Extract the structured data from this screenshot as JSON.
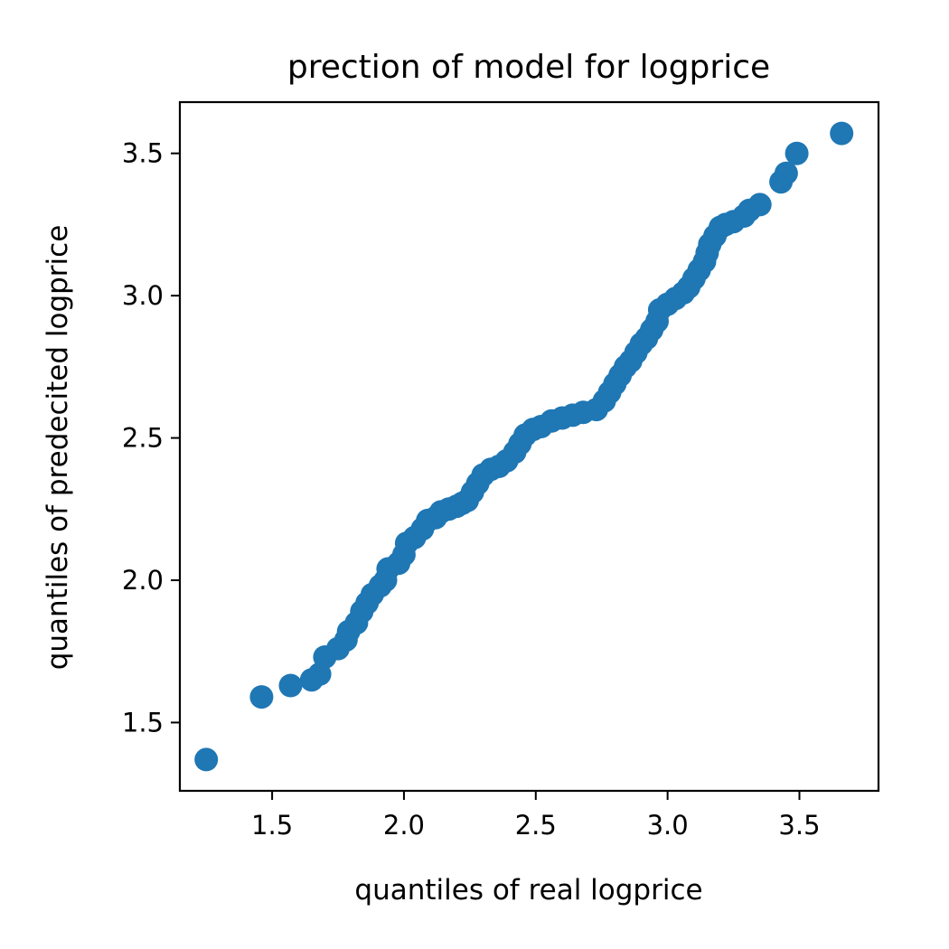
{
  "chart_data": {
    "type": "scatter",
    "title": "prection of model for logprice",
    "xlabel": "quantiles of real logprice",
    "ylabel": "quantiles of predecited logprice",
    "xlim": [
      1.15,
      3.8
    ],
    "ylim": [
      1.26,
      3.68
    ],
    "xticks": [
      1.5,
      2.0,
      2.5,
      3.0,
      3.5
    ],
    "yticks": [
      1.5,
      2.0,
      2.5,
      3.0,
      3.5
    ],
    "xtick_labels": [
      "1.5",
      "2.0",
      "2.5",
      "3.0",
      "3.5"
    ],
    "ytick_labels": [
      "1.5",
      "2.0",
      "2.5",
      "3.0",
      "3.5"
    ],
    "grid": false,
    "marker_color": "#1f77b4",
    "series": [
      {
        "points": [
          [
            1.25,
            1.37
          ],
          [
            1.46,
            1.59
          ],
          [
            1.57,
            1.63
          ],
          [
            1.65,
            1.65
          ],
          [
            1.68,
            1.67
          ],
          [
            1.7,
            1.73
          ],
          [
            1.75,
            1.76
          ],
          [
            1.78,
            1.79
          ],
          [
            1.79,
            1.82
          ],
          [
            1.82,
            1.85
          ],
          [
            1.84,
            1.89
          ],
          [
            1.86,
            1.92
          ],
          [
            1.88,
            1.95
          ],
          [
            1.91,
            1.98
          ],
          [
            1.93,
            2.0
          ],
          [
            1.94,
            2.04
          ],
          [
            1.98,
            2.06
          ],
          [
            2.0,
            2.09
          ],
          [
            2.01,
            2.13
          ],
          [
            2.04,
            2.15
          ],
          [
            2.07,
            2.18
          ],
          [
            2.09,
            2.21
          ],
          [
            2.12,
            2.22
          ],
          [
            2.14,
            2.24
          ],
          [
            2.17,
            2.25
          ],
          [
            2.2,
            2.26
          ],
          [
            2.22,
            2.27
          ],
          [
            2.24,
            2.28
          ],
          [
            2.26,
            2.31
          ],
          [
            2.28,
            2.34
          ],
          [
            2.3,
            2.37
          ],
          [
            2.33,
            2.39
          ],
          [
            2.36,
            2.4
          ],
          [
            2.39,
            2.42
          ],
          [
            2.42,
            2.45
          ],
          [
            2.44,
            2.48
          ],
          [
            2.46,
            2.51
          ],
          [
            2.49,
            2.53
          ],
          [
            2.52,
            2.54
          ],
          [
            2.56,
            2.56
          ],
          [
            2.6,
            2.57
          ],
          [
            2.64,
            2.58
          ],
          [
            2.68,
            2.59
          ],
          [
            2.73,
            2.6
          ],
          [
            2.76,
            2.63
          ],
          [
            2.78,
            2.66
          ],
          [
            2.8,
            2.69
          ],
          [
            2.82,
            2.72
          ],
          [
            2.84,
            2.75
          ],
          [
            2.86,
            2.77
          ],
          [
            2.88,
            2.8
          ],
          [
            2.9,
            2.83
          ],
          [
            2.92,
            2.85
          ],
          [
            2.94,
            2.88
          ],
          [
            2.96,
            2.91
          ],
          [
            2.97,
            2.95
          ],
          [
            3.0,
            2.97
          ],
          [
            3.03,
            2.99
          ],
          [
            3.06,
            3.01
          ],
          [
            3.08,
            3.03
          ],
          [
            3.1,
            3.06
          ],
          [
            3.12,
            3.09
          ],
          [
            3.14,
            3.12
          ],
          [
            3.15,
            3.15
          ],
          [
            3.16,
            3.18
          ],
          [
            3.18,
            3.21
          ],
          [
            3.2,
            3.24
          ],
          [
            3.22,
            3.25
          ],
          [
            3.25,
            3.26
          ],
          [
            3.29,
            3.28
          ],
          [
            3.31,
            3.3
          ],
          [
            3.35,
            3.32
          ],
          [
            3.43,
            3.4
          ],
          [
            3.45,
            3.43
          ],
          [
            3.49,
            3.5
          ],
          [
            3.66,
            3.57
          ]
        ]
      }
    ]
  }
}
